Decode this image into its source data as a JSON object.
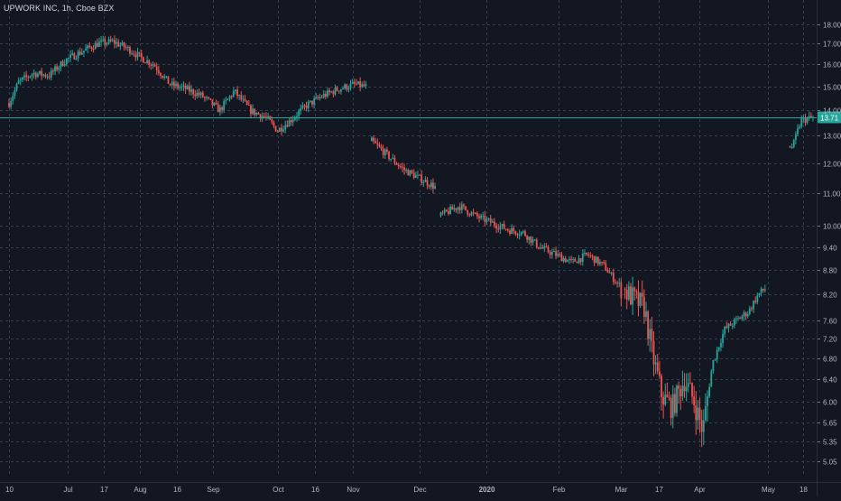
{
  "header": {
    "title": "UPWORK INC, 1h, Cboe BZX"
  },
  "colors": {
    "background": "#131722",
    "grid": "#363c4e",
    "axis_text": "#b2b5be",
    "up": "#26a69a",
    "down": "#ef5350",
    "price_line": "#26a69a",
    "price_label_bg": "#26a69a"
  },
  "chart_data": {
    "type": "candlestick",
    "title": "UPWORK INC, 1h, Cboe BZX",
    "symbol": "UPWORK INC",
    "interval": "1h",
    "exchange": "Cboe BZX",
    "last_price": 13.71,
    "last_price_label": "13.71",
    "y_scale": "log",
    "ylim": [
      4.9,
      18.9
    ],
    "grid": true,
    "y_ticks": [
      "18.00",
      "17.00",
      "16.00",
      "15.00",
      "14.00",
      "13.00",
      "12.00",
      "11.00",
      "10.00",
      "9.40",
      "8.80",
      "8.20",
      "7.60",
      "7.20",
      "6.80",
      "6.40",
      "6.00",
      "5.65",
      "5.35",
      "5.05"
    ],
    "x_ticks": [
      {
        "label": "10",
        "t": 0.0
      },
      {
        "label": "Jul",
        "t": 0.073
      },
      {
        "label": "17",
        "t": 0.118
      },
      {
        "label": "Aug",
        "t": 0.163
      },
      {
        "label": "16",
        "t": 0.209
      },
      {
        "label": "Sep",
        "t": 0.254
      },
      {
        "label": "Oct",
        "t": 0.335
      },
      {
        "label": "16",
        "t": 0.381
      },
      {
        "label": "Nov",
        "t": 0.428
      },
      {
        "label": "Dec",
        "t": 0.511
      },
      {
        "label": "2020",
        "t": 0.594
      },
      {
        "label": "Feb",
        "t": 0.684
      },
      {
        "label": "Mar",
        "t": 0.761
      },
      {
        "label": "17",
        "t": 0.808
      },
      {
        "label": "Apr",
        "t": 0.859
      },
      {
        "label": "May",
        "t": 0.944
      },
      {
        "label": "18",
        "t": 0.988
      }
    ],
    "price_path": [
      [
        0.0,
        14.3
      ],
      [
        0.012,
        15.2
      ],
      [
        0.03,
        15.6
      ],
      [
        0.05,
        15.5
      ],
      [
        0.07,
        16.2
      ],
      [
        0.09,
        16.6
      ],
      [
        0.11,
        17.0
      ],
      [
        0.13,
        17.1
      ],
      [
        0.15,
        16.7
      ],
      [
        0.165,
        16.3
      ],
      [
        0.18,
        16.0
      ],
      [
        0.2,
        15.1
      ],
      [
        0.22,
        14.9
      ],
      [
        0.24,
        14.6
      ],
      [
        0.262,
        14.0
      ],
      [
        0.28,
        14.8
      ],
      [
        0.3,
        14.0
      ],
      [
        0.32,
        13.7
      ],
      [
        0.334,
        13.2
      ],
      [
        0.35,
        13.6
      ],
      [
        0.37,
        14.2
      ],
      [
        0.39,
        14.6
      ],
      [
        0.41,
        14.9
      ],
      [
        0.43,
        15.1
      ],
      [
        0.444,
        15.0
      ],
      [
        0.451,
        12.8
      ],
      [
        0.47,
        12.3
      ],
      [
        0.49,
        11.8
      ],
      [
        0.51,
        11.5
      ],
      [
        0.53,
        11.2
      ],
      [
        0.536,
        10.3
      ],
      [
        0.56,
        10.6
      ],
      [
        0.58,
        10.3
      ],
      [
        0.6,
        10.1
      ],
      [
        0.62,
        9.9
      ],
      [
        0.64,
        9.8
      ],
      [
        0.66,
        9.4
      ],
      [
        0.68,
        9.2
      ],
      [
        0.7,
        9.0
      ],
      [
        0.72,
        9.2
      ],
      [
        0.74,
        8.9
      ],
      [
        0.755,
        8.5
      ],
      [
        0.77,
        8.2
      ],
      [
        0.79,
        7.9
      ],
      [
        0.8,
        6.9
      ],
      [
        0.812,
        6.1
      ],
      [
        0.825,
        5.9
      ],
      [
        0.84,
        6.4
      ],
      [
        0.852,
        6.0
      ],
      [
        0.863,
        5.5
      ],
      [
        0.875,
        6.7
      ],
      [
        0.89,
        7.4
      ],
      [
        0.905,
        7.6
      ],
      [
        0.92,
        7.8
      ],
      [
        0.932,
        8.2
      ],
      [
        0.945,
        8.4
      ],
      [
        0.958,
        9.0
      ],
      [
        0.968,
        10.4
      ],
      [
        0.975,
        12.6
      ],
      [
        0.985,
        13.6
      ],
      [
        0.999,
        13.7
      ]
    ]
  }
}
